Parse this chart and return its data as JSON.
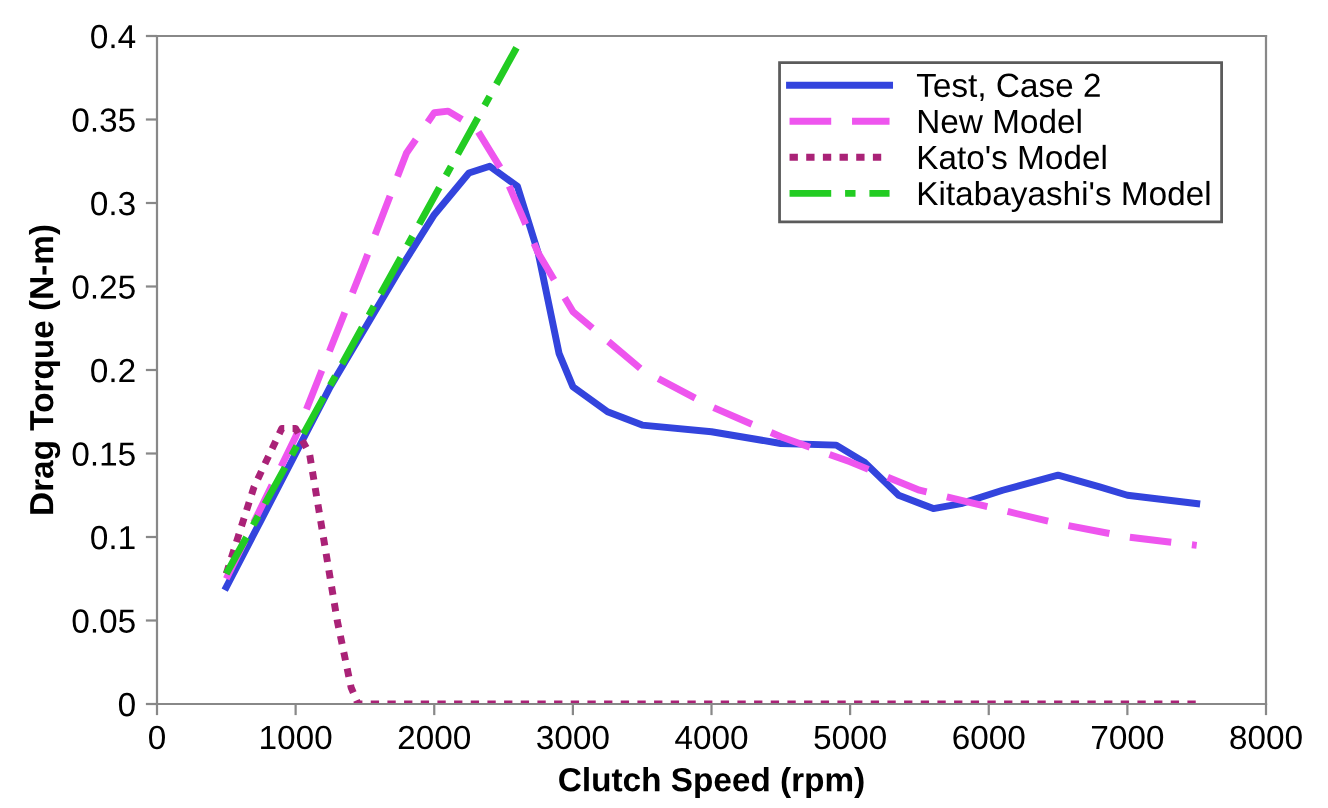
{
  "chart_data": {
    "type": "line",
    "xlabel": "Clutch Speed (rpm)",
    "ylabel": "Drag Torque (N-m)",
    "xlim": [
      0,
      8000
    ],
    "xticks": [
      0,
      1000,
      2000,
      3000,
      4000,
      5000,
      6000,
      7000,
      8000
    ],
    "ylim": [
      0,
      0.4
    ],
    "yticks": [
      0,
      0.05,
      0.1,
      0.15,
      0.2,
      0.25,
      0.3,
      0.35,
      0.4
    ],
    "grid": false,
    "legend": "top right",
    "marker": "none",
    "series": [
      {
        "name": "Test, Case 2",
        "color": "#3344dd",
        "line_style": "solid",
        "x": [
          500,
          750,
          1000,
          1250,
          1500,
          1750,
          2000,
          2250,
          2400,
          2600,
          2750,
          2900,
          3000,
          3250,
          3500,
          4000,
          4500,
          4900,
          5100,
          5350,
          5600,
          5800,
          6100,
          6500,
          6800,
          7000,
          7500
        ],
        "values": [
          0.07,
          0.11,
          0.15,
          0.19,
          0.225,
          0.26,
          0.293,
          0.318,
          0.322,
          0.31,
          0.27,
          0.21,
          0.19,
          0.175,
          0.167,
          0.163,
          0.156,
          0.155,
          0.145,
          0.125,
          0.117,
          0.12,
          0.128,
          0.137,
          0.13,
          0.125,
          0.12
        ]
      },
      {
        "name": "New Model",
        "color": "#ee55ee",
        "line_style": "dashed",
        "x": [
          500,
          1000,
          1500,
          1800,
          2000,
          2100,
          2300,
          2500,
          2750,
          3000,
          3500,
          4000,
          4500,
          5000,
          5500,
          6000,
          6500,
          7000,
          7500
        ],
        "values": [
          0.075,
          0.16,
          0.265,
          0.33,
          0.354,
          0.355,
          0.345,
          0.318,
          0.27,
          0.235,
          0.2,
          0.178,
          0.16,
          0.145,
          0.128,
          0.118,
          0.108,
          0.1,
          0.095
        ]
      },
      {
        "name": "Kato's Model",
        "color": "#aa2277",
        "line_style": "dotted",
        "x": [
          500,
          700,
          900,
          1000,
          1100,
          1200,
          1300,
          1400,
          1450,
          7500
        ],
        "values": [
          0.078,
          0.13,
          0.165,
          0.165,
          0.15,
          0.1,
          0.05,
          0.01,
          0,
          0
        ]
      },
      {
        "name": "Kitabayashi's Model",
        "color": "#22cc22",
        "line_style": "dashdot",
        "x": [
          500,
          2640
        ],
        "values": [
          0.078,
          0.4
        ]
      }
    ]
  }
}
